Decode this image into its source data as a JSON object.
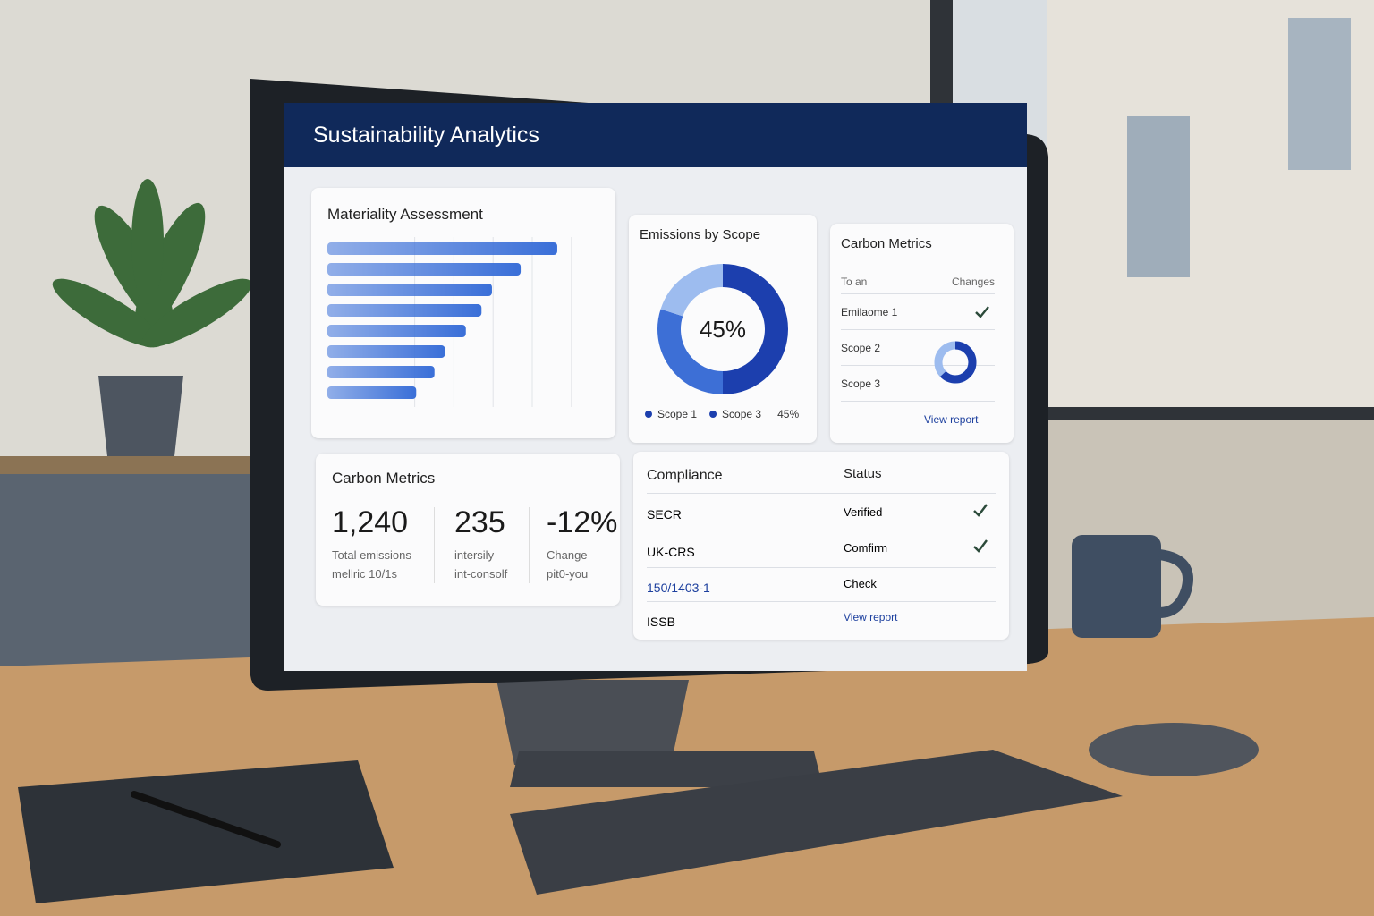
{
  "header": {
    "title": "Sustainability Analytics"
  },
  "chart_data": [
    {
      "type": "bar",
      "title": "Materiality Assessment",
      "orientation": "horizontal",
      "values": [
        88,
        74,
        63,
        59,
        53,
        45,
        41,
        34
      ],
      "color": "#3a6fd8",
      "xlim": [
        0,
        100
      ]
    },
    {
      "type": "pie",
      "title": "Emissions by Scope",
      "center_label": "45%",
      "values": [
        50,
        30,
        20
      ],
      "colors": [
        "#1c3fae",
        "#3d6fd6",
        "#9dbcef"
      ],
      "legend": [
        {
          "name": "Scope 1",
          "color": "#1c3fae"
        },
        {
          "name": "Scope 3",
          "color": "#1c3fae"
        },
        {
          "name": "45%"
        }
      ]
    }
  ],
  "carbon_table": {
    "title": "Carbon Metrics",
    "headers": [
      "To an",
      "Changes"
    ],
    "rows": [
      "Emilaome 1",
      "Scope 2",
      "Scope 3"
    ],
    "link": "View report"
  },
  "carbon_metrics": {
    "title": "Carbon Metrics",
    "metrics": [
      {
        "value": "1,240",
        "lines": [
          "Total emissions",
          "mellric 10/1s"
        ]
      },
      {
        "value": "235",
        "lines": [
          "intersily",
          "int-consolf"
        ]
      },
      {
        "value": "-12%",
        "lines": [
          "Change",
          "pit0-you"
        ]
      }
    ]
  },
  "compliance": {
    "headers": [
      "Compliance",
      "Status"
    ],
    "rows": [
      [
        "SECR",
        "Verified"
      ],
      [
        "UK-CRS",
        "Comfirm"
      ],
      [
        "150/1403-1",
        "Check"
      ],
      [
        "ISSB",
        "View report"
      ]
    ]
  }
}
